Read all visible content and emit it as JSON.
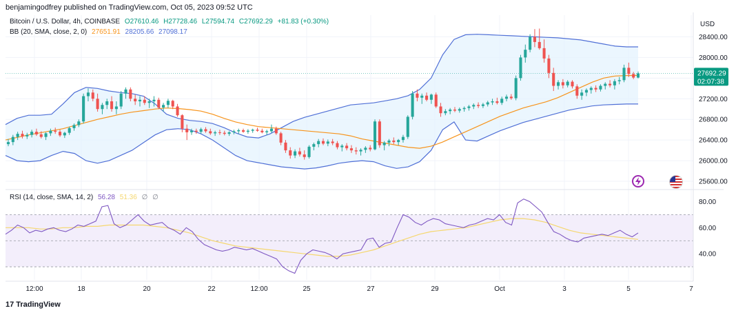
{
  "header": {
    "published": "benjamingodfrey published on TradingView.com, Oct 05, 2023 09:52 UTC"
  },
  "price_legend": {
    "symbol": "Bitcoin / U.S. Dollar, 4h, COINBASE",
    "open": "O27610.46",
    "high": "H27728.46",
    "low": "L27594.74",
    "close": "C27692.29",
    "change": "+81.83 (+0.30%)"
  },
  "bb_legend": {
    "label": "BB (20, SMA, close, 2, 0)",
    "basis": "27651.91",
    "upper": "28205.66",
    "lower": "27098.17"
  },
  "rsi_legend": {
    "label": "RSI (14, close, SMA, 14, 2)",
    "rsi": "56.28",
    "rsi_ma": "51.36",
    "extra1": "∅",
    "extra2": "∅"
  },
  "price_scale": {
    "currency": "USD",
    "last_price": "27692.29",
    "countdown": "02:07:38"
  },
  "footer": {
    "brand": "TradingView"
  },
  "colors": {
    "up": "#26a69a",
    "down": "#ef5350",
    "bb_basis": "#f7931a",
    "bb_band": "#4f6fd6",
    "bb_fill": "#e3f2fd",
    "rsi_line": "#7e57c2",
    "rsi_ma": "#f5d76e",
    "rsi_fill": "#f3eefb"
  },
  "icons": {
    "flash": "lightning-icon",
    "flag": "us-flag-icon"
  },
  "chart_data": [
    {
      "type": "candlestick",
      "title": "Bitcoin / U.S. Dollar, 4h, COINBASE",
      "ylabel": "USD",
      "y_ticks": [
        25600,
        26000,
        26400,
        26800,
        27200,
        27600,
        28000,
        28400
      ],
      "ylim": [
        25480,
        28820
      ],
      "x_ticks": [
        "12:00",
        "18",
        "20",
        "22",
        "12:00",
        "25",
        "27",
        "29",
        "Oct",
        "3",
        "5",
        "7"
      ],
      "grid": true,
      "candles": [
        [
          26320,
          26420,
          26280,
          26360
        ],
        [
          26360,
          26500,
          26300,
          26460
        ],
        [
          26460,
          26560,
          26400,
          26520
        ],
        [
          26520,
          26580,
          26430,
          26470
        ],
        [
          26470,
          26540,
          26420,
          26500
        ],
        [
          26500,
          26600,
          26450,
          26560
        ],
        [
          26560,
          26620,
          26480,
          26510
        ],
        [
          26510,
          26570,
          26430,
          26460
        ],
        [
          26460,
          26550,
          26400,
          26530
        ],
        [
          26530,
          26620,
          26480,
          26580
        ],
        [
          26580,
          26640,
          26520,
          26560
        ],
        [
          26560,
          26600,
          26460,
          26490
        ],
        [
          26490,
          26560,
          26440,
          26540
        ],
        [
          26540,
          26660,
          26500,
          26630
        ],
        [
          26630,
          26720,
          26580,
          26690
        ],
        [
          26690,
          26800,
          26650,
          26760
        ],
        [
          26760,
          27300,
          26720,
          27250
        ],
        [
          27250,
          27400,
          27150,
          27320
        ],
        [
          27320,
          27380,
          27150,
          27200
        ],
        [
          27200,
          27300,
          26950,
          27000
        ],
        [
          27000,
          27120,
          26900,
          27080
        ],
        [
          27080,
          27200,
          27000,
          27150
        ],
        [
          27150,
          27250,
          26950,
          27000
        ],
        [
          27000,
          27150,
          26900,
          27050
        ],
        [
          27050,
          27350,
          27000,
          27300
        ],
        [
          27300,
          27420,
          27200,
          27380
        ],
        [
          27380,
          27420,
          27150,
          27200
        ],
        [
          27200,
          27280,
          27080,
          27150
        ],
        [
          27150,
          27250,
          27050,
          27180
        ],
        [
          27180,
          27250,
          27080,
          27120
        ],
        [
          27120,
          27200,
          27020,
          27150
        ],
        [
          27150,
          27250,
          27050,
          27180
        ],
        [
          27180,
          27220,
          27000,
          27030
        ],
        [
          27030,
          27120,
          26950,
          27080
        ],
        [
          27080,
          27200,
          27020,
          27160
        ],
        [
          27160,
          27180,
          27000,
          27050
        ],
        [
          27050,
          27100,
          26850,
          26880
        ],
        [
          26880,
          26900,
          26550,
          26620
        ],
        [
          26620,
          26700,
          26400,
          26550
        ],
        [
          26550,
          26620,
          26500,
          26580
        ],
        [
          26580,
          26620,
          26520,
          26560
        ],
        [
          26560,
          26640,
          26520,
          26610
        ],
        [
          26610,
          26650,
          26540,
          26570
        ],
        [
          26570,
          26620,
          26500,
          26530
        ],
        [
          26530,
          26580,
          26480,
          26550
        ],
        [
          26550,
          26600,
          26500,
          26540
        ],
        [
          26540,
          26580,
          26490,
          26520
        ],
        [
          26520,
          26570,
          26480,
          26550
        ],
        [
          26550,
          26600,
          26510,
          26570
        ],
        [
          26570,
          26620,
          26520,
          26590
        ],
        [
          26590,
          26620,
          26540,
          26560
        ],
        [
          26560,
          26610,
          26520,
          26580
        ],
        [
          26580,
          26620,
          26540,
          26600
        ],
        [
          26600,
          26640,
          26560,
          26580
        ],
        [
          26580,
          26620,
          26530,
          26550
        ],
        [
          26550,
          26600,
          26500,
          26570
        ],
        [
          26570,
          26700,
          26540,
          26620
        ],
        [
          26620,
          26660,
          26500,
          26530
        ],
        [
          26530,
          26560,
          26300,
          26350
        ],
        [
          26350,
          26400,
          26150,
          26200
        ],
        [
          26200,
          26260,
          26040,
          26100
        ],
        [
          26100,
          26220,
          26050,
          26180
        ],
        [
          26180,
          26250,
          26080,
          26120
        ],
        [
          26120,
          26200,
          26020,
          26070
        ],
        [
          26070,
          26300,
          26040,
          26270
        ],
        [
          26270,
          26350,
          26200,
          26320
        ],
        [
          26320,
          26420,
          26260,
          26380
        ],
        [
          26380,
          26430,
          26300,
          26330
        ],
        [
          26330,
          26410,
          26280,
          26370
        ],
        [
          26370,
          26420,
          26300,
          26340
        ],
        [
          26340,
          26380,
          26220,
          26260
        ],
        [
          26260,
          26320,
          26180,
          26290
        ],
        [
          26290,
          26340,
          26200,
          26240
        ],
        [
          26240,
          26300,
          26150,
          26200
        ],
        [
          26200,
          26260,
          26120,
          26180
        ],
        [
          26180,
          26240,
          26100,
          26210
        ],
        [
          26210,
          26280,
          26150,
          26250
        ],
        [
          26250,
          26300,
          26180,
          26220
        ],
        [
          26220,
          26800,
          26200,
          26760
        ],
        [
          26760,
          26800,
          26250,
          26300
        ],
        [
          26300,
          26380,
          26200,
          26350
        ],
        [
          26350,
          26420,
          26280,
          26390
        ],
        [
          26390,
          26450,
          26320,
          26360
        ],
        [
          26360,
          26420,
          26300,
          26400
        ],
        [
          26400,
          26500,
          26350,
          26460
        ],
        [
          26460,
          26880,
          26420,
          26850
        ],
        [
          26850,
          27350,
          26800,
          27300
        ],
        [
          27300,
          27380,
          27150,
          27220
        ],
        [
          27220,
          27300,
          27100,
          27260
        ],
        [
          27260,
          27320,
          27150,
          27180
        ],
        [
          27180,
          27300,
          27100,
          27280
        ],
        [
          27280,
          27320,
          27020,
          27050
        ],
        [
          27050,
          27120,
          26850,
          26920
        ],
        [
          26920,
          27000,
          26880,
          26960
        ],
        [
          26960,
          27020,
          26900,
          26990
        ],
        [
          26990,
          27040,
          26940,
          26970
        ],
        [
          26970,
          27030,
          26930,
          27000
        ],
        [
          27000,
          27050,
          26950,
          27020
        ],
        [
          27020,
          27080,
          26970,
          27050
        ],
        [
          27050,
          27110,
          27000,
          27080
        ],
        [
          27080,
          27130,
          27020,
          27060
        ],
        [
          27060,
          27120,
          27020,
          27090
        ],
        [
          27090,
          27160,
          27050,
          27130
        ],
        [
          27130,
          27200,
          27080,
          27150
        ],
        [
          27150,
          27220,
          27090,
          27120
        ],
        [
          27120,
          27240,
          27080,
          27200
        ],
        [
          27200,
          27280,
          27150,
          27240
        ],
        [
          27240,
          27290,
          27180,
          27210
        ],
        [
          27210,
          27650,
          27170,
          27600
        ],
        [
          27600,
          28050,
          27550,
          28000
        ],
        [
          28000,
          28250,
          27900,
          28150
        ],
        [
          28150,
          28450,
          28100,
          28400
        ],
        [
          28400,
          28550,
          28200,
          28300
        ],
        [
          28300,
          28560,
          28150,
          28180
        ],
        [
          28180,
          28350,
          27900,
          27980
        ],
        [
          27980,
          28050,
          27600,
          27700
        ],
        [
          27700,
          27800,
          27350,
          27450
        ],
        [
          27450,
          27560,
          27380,
          27520
        ],
        [
          27520,
          27580,
          27400,
          27460
        ],
        [
          27460,
          27560,
          27420,
          27530
        ],
        [
          27530,
          27560,
          27400,
          27440
        ],
        [
          27440,
          27480,
          27200,
          27260
        ],
        [
          27260,
          27380,
          27180,
          27320
        ],
        [
          27320,
          27400,
          27250,
          27370
        ],
        [
          27370,
          27440,
          27300,
          27410
        ],
        [
          27410,
          27460,
          27330,
          27380
        ],
        [
          27380,
          27480,
          27340,
          27450
        ],
        [
          27450,
          27520,
          27380,
          27490
        ],
        [
          27490,
          27560,
          27420,
          27460
        ],
        [
          27460,
          27580,
          27380,
          27540
        ],
        [
          27540,
          27620,
          27480,
          27560
        ],
        [
          27560,
          27860,
          27520,
          27800
        ],
        [
          27800,
          27900,
          27620,
          27680
        ],
        [
          27680,
          27720,
          27580,
          27610
        ],
        [
          27610,
          27728,
          27594,
          27692
        ]
      ],
      "bb_basis": [
        26400,
        26450,
        26500,
        26540,
        26580,
        26620,
        26680,
        26740,
        26800,
        26850,
        26900,
        26940,
        26970,
        27000,
        27020,
        27010,
        26990,
        26960,
        26900,
        26820,
        26750,
        26700,
        26660,
        26640,
        26620,
        26600,
        26580,
        26560,
        26540,
        26520,
        26480,
        26420,
        26380,
        26340,
        26300,
        26260,
        26240,
        26280,
        26360,
        26460,
        26560,
        26660,
        26760,
        26860,
        26940,
        27020,
        27080,
        27140,
        27220,
        27320,
        27420,
        27520,
        27600,
        27640,
        27650,
        27652
      ],
      "bb_upper": [
        26700,
        26820,
        26880,
        26880,
        26900,
        27100,
        27320,
        27420,
        27400,
        27350,
        27320,
        27300,
        27250,
        27100,
        26900,
        26820,
        26780,
        26760,
        26720,
        26640,
        26540,
        26460,
        26440,
        26520,
        26640,
        26760,
        26840,
        26900,
        26960,
        27020,
        27080,
        27100,
        27120,
        27160,
        27200,
        27260,
        27380,
        27600,
        28050,
        28350,
        28440,
        28450,
        28440,
        28430,
        28420,
        28410,
        28400,
        28390,
        28380,
        28360,
        28340,
        28300,
        28260,
        28220,
        28205,
        28205
      ],
      "bb_lower": [
        26100,
        26000,
        25980,
        26000,
        26100,
        26180,
        26140,
        26000,
        25950,
        26000,
        26100,
        26200,
        26350,
        26500,
        26600,
        26620,
        26600,
        26520,
        26400,
        26250,
        26100,
        26000,
        25960,
        25920,
        25880,
        25860,
        25840,
        25860,
        25900,
        25950,
        25980,
        26000,
        25980,
        25900,
        25850,
        25880,
        25980,
        26200,
        26600,
        26750,
        26400,
        26380,
        26480,
        26580,
        26660,
        26740,
        26800,
        26860,
        26920,
        26980,
        27020,
        27060,
        27080,
        27090,
        27098,
        27098
      ],
      "last_price": 27692.29
    },
    {
      "type": "line",
      "title": "RSI (14, close, SMA, 14, 2)",
      "y_ticks": [
        40,
        60,
        80
      ],
      "ylim": [
        20,
        85
      ],
      "bands": [
        30,
        50,
        70
      ],
      "series": [
        {
          "name": "RSI",
          "values": [
            55,
            58,
            62,
            60,
            56,
            58,
            57,
            59,
            60,
            58,
            57,
            59,
            62,
            61,
            63,
            65,
            76,
            77,
            63,
            60,
            62,
            66,
            70,
            65,
            62,
            63,
            64,
            60,
            58,
            55,
            60,
            57,
            51,
            47,
            45,
            43,
            42,
            43,
            45,
            44,
            43,
            44,
            42,
            40,
            38,
            36,
            30,
            27,
            25,
            35,
            40,
            43,
            42,
            41,
            39,
            36,
            40,
            41,
            42,
            43,
            51,
            52,
            45,
            48,
            49,
            60,
            70,
            68,
            64,
            62,
            65,
            67,
            66,
            63,
            62,
            61,
            60,
            62,
            63,
            65,
            67,
            66,
            70,
            64,
            62,
            79,
            82,
            80,
            76,
            72,
            64,
            57,
            55,
            52,
            50,
            49,
            52,
            53,
            54,
            55,
            54,
            56,
            58,
            55,
            53,
            56
          ]
        },
        {
          "name": "RSI-based MA",
          "values": [
            60,
            60,
            60,
            59,
            59,
            60,
            60,
            61,
            61,
            62,
            62,
            62,
            62,
            61,
            60,
            58,
            56,
            53,
            50,
            48,
            46,
            45,
            44,
            43,
            42,
            41,
            40,
            39,
            38,
            38,
            39,
            41,
            43,
            46,
            49,
            52,
            55,
            57,
            58,
            59,
            60,
            62,
            64,
            66,
            67,
            67,
            66,
            64,
            61,
            58,
            56,
            55,
            54,
            53,
            52,
            51
          ]
        }
      ]
    }
  ]
}
